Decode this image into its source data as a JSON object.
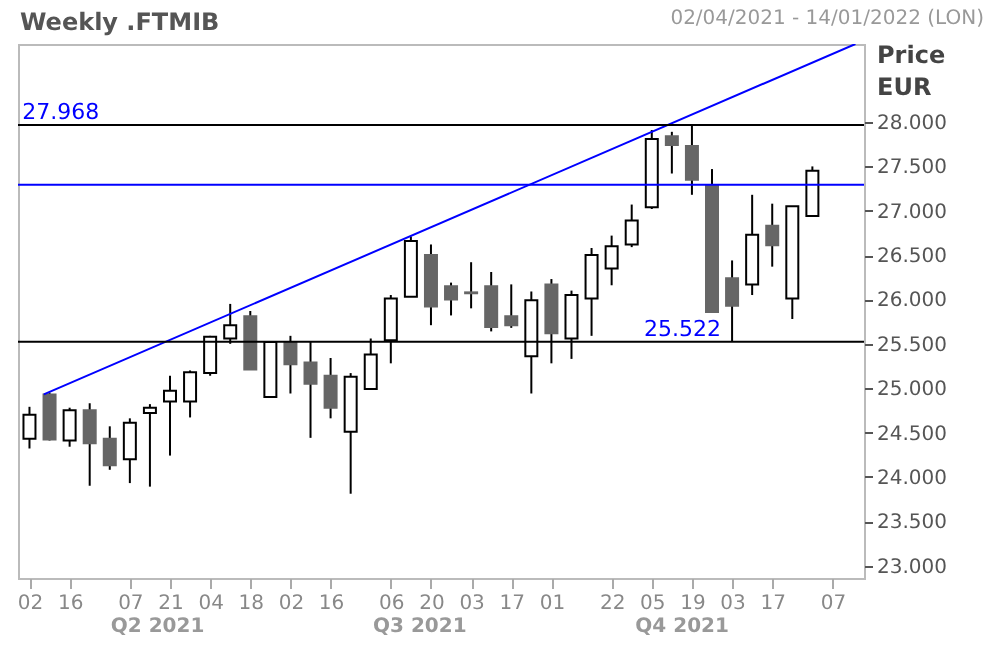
{
  "chart_data": {
    "type": "candlestick",
    "title": "Weekly .FTMIB",
    "subtitle": "02/04/2021 - 14/01/2022 (LON)",
    "ylabel": "Price EUR",
    "x": [
      "2021-04-02",
      "2021-04-09",
      "2021-04-16",
      "2021-04-23",
      "2021-04-30",
      "2021-05-07",
      "2021-05-14",
      "2021-05-21",
      "2021-05-28",
      "2021-06-04",
      "2021-06-11",
      "2021-06-18",
      "2021-06-25",
      "2021-07-02",
      "2021-07-09",
      "2021-07-16",
      "2021-07-23",
      "2021-07-30",
      "2021-08-06",
      "2021-08-13",
      "2021-08-20",
      "2021-08-27",
      "2021-09-03",
      "2021-09-10",
      "2021-09-17",
      "2021-09-24",
      "2021-10-01",
      "2021-10-08",
      "2021-10-15",
      "2021-10-22",
      "2021-10-29",
      "2021-11-05",
      "2021-11-12",
      "2021-11-19",
      "2021-11-26",
      "2021-12-03",
      "2021-12-10",
      "2021-12-17",
      "2021-12-24",
      "2021-12-31"
    ],
    "ohlc": [
      [
        24430,
        24790,
        24320,
        24700
      ],
      [
        24930,
        24950,
        24410,
        24420
      ],
      [
        24410,
        24780,
        24340,
        24750
      ],
      [
        24750,
        24830,
        23900,
        24380
      ],
      [
        24430,
        24570,
        24080,
        24130
      ],
      [
        24200,
        24660,
        23930,
        24610
      ],
      [
        24720,
        24820,
        23890,
        24780
      ],
      [
        24850,
        25140,
        24240,
        24970
      ],
      [
        24850,
        25200,
        24670,
        25180
      ],
      [
        25170,
        25590,
        25140,
        25580
      ],
      [
        25560,
        25950,
        25500,
        25710
      ],
      [
        25810,
        25870,
        25210,
        25210
      ],
      [
        24900,
        25530,
        24900,
        25520
      ],
      [
        25520,
        25590,
        24940,
        25270
      ],
      [
        25290,
        25530,
        24440,
        25050
      ],
      [
        25140,
        25340,
        24660,
        24780
      ],
      [
        24510,
        25170,
        23810,
        25130
      ],
      [
        24990,
        25560,
        24990,
        25380
      ],
      [
        25540,
        26050,
        25280,
        26010
      ],
      [
        26030,
        26710,
        26030,
        26660
      ],
      [
        26500,
        26620,
        25710,
        25920
      ],
      [
        26150,
        26190,
        25820,
        26000
      ],
      [
        26080,
        26420,
        25900,
        26070
      ],
      [
        26150,
        26310,
        25640,
        25690
      ],
      [
        25810,
        26170,
        25680,
        25710
      ],
      [
        25360,
        26090,
        24940,
        25990
      ],
      [
        26170,
        26230,
        25280,
        25620
      ],
      [
        25560,
        26100,
        25330,
        26050
      ],
      [
        26010,
        26580,
        25590,
        26500
      ],
      [
        26350,
        26720,
        26160,
        26600
      ],
      [
        26620,
        27070,
        26590,
        26890
      ],
      [
        27040,
        27910,
        27020,
        27810
      ],
      [
        27840,
        27890,
        27420,
        27740
      ],
      [
        27730,
        27968,
        27180,
        27350
      ],
      [
        27290,
        27470,
        25860,
        25860
      ],
      [
        26240,
        26440,
        25522,
        25930
      ],
      [
        26170,
        27180,
        26050,
        26730
      ],
      [
        26830,
        27080,
        26370,
        26610
      ],
      [
        26010,
        27050,
        25780,
        27050
      ],
      [
        26940,
        27500,
        26940,
        27450
      ]
    ],
    "series": [
      {
        "type": "line",
        "color": "#0000ff",
        "x": [
          "2021-04-07",
          "2022-01-15"
        ],
        "values": [
          24930,
          28880
        ]
      }
    ],
    "ref_lines": [
      {
        "axis": "y",
        "value": 27968,
        "label": "27.968",
        "color": "#000000"
      },
      {
        "axis": "y",
        "value": 25522,
        "label": "25.522",
        "color": "#000000"
      },
      {
        "axis": "y",
        "value": 27293,
        "color": "#0000ff"
      }
    ],
    "annotations": [
      "Q2 2021",
      "Q3 2021",
      "Q4 2021"
    ],
    "xlim": [
      "2021-03-29",
      "2022-01-18"
    ],
    "xticks": [
      {
        "value": "2021-04-02",
        "label": "02"
      },
      {
        "value": "2021-04-16",
        "label": "16"
      },
      {
        "value": "2021-05-07",
        "label": "07"
      },
      {
        "value": "2021-05-21",
        "label": "21"
      },
      {
        "value": "2021-06-04",
        "label": "04"
      },
      {
        "value": "2021-06-18",
        "label": "18"
      },
      {
        "value": "2021-07-02",
        "label": "02"
      },
      {
        "value": "2021-07-16",
        "label": "16"
      },
      {
        "value": "2021-08-06",
        "label": "06"
      },
      {
        "value": "2021-08-20",
        "label": "20"
      },
      {
        "value": "2021-09-03",
        "label": "03"
      },
      {
        "value": "2021-09-17",
        "label": "17"
      },
      {
        "value": "2021-10-01",
        "label": "01"
      },
      {
        "value": "2021-10-22",
        "label": "22"
      },
      {
        "value": "2021-11-05",
        "label": "05"
      },
      {
        "value": "2021-11-19",
        "label": "19"
      },
      {
        "value": "2021-12-03",
        "label": "03"
      },
      {
        "value": "2021-12-17",
        "label": "17"
      },
      {
        "value": "2022-01-07",
        "label": "07"
      }
    ],
    "ylim": [
      22860,
      28880
    ],
    "yticks": [
      {
        "value": 23000,
        "label": "23.000"
      },
      {
        "value": 23500,
        "label": "23.500"
      },
      {
        "value": 24000,
        "label": "24.000"
      },
      {
        "value": 24500,
        "label": "24.500"
      },
      {
        "value": 25000,
        "label": "25.000"
      },
      {
        "value": 25500,
        "label": "25.500"
      },
      {
        "value": 26000,
        "label": "26.000"
      },
      {
        "value": 26500,
        "label": "26.500"
      },
      {
        "value": 27000,
        "label": "27.000"
      },
      {
        "value": 27500,
        "label": "27.500"
      },
      {
        "value": 28000,
        "label": "28.000"
      }
    ]
  }
}
